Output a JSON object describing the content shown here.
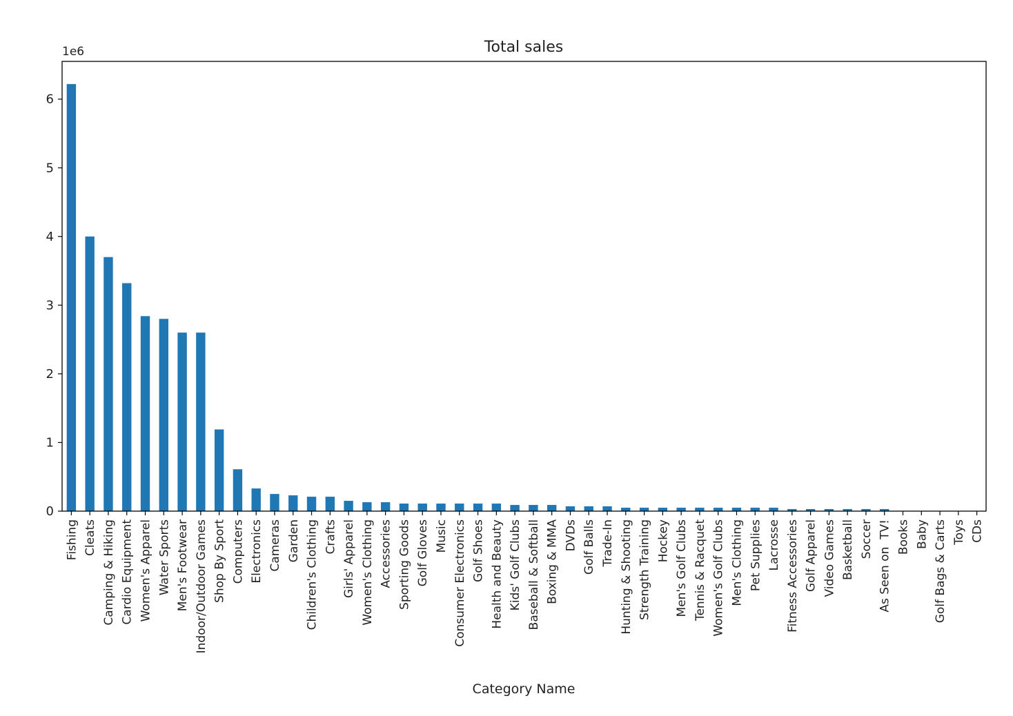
{
  "chart_data": {
    "type": "bar",
    "title": "Total sales",
    "xlabel": "Category Name",
    "ylabel": "",
    "y_offset_label": "1e6",
    "y_scale": 1000000,
    "ylim": [
      0,
      6550000
    ],
    "yticks": [
      0,
      1,
      2,
      3,
      4,
      5,
      6
    ],
    "grid": false,
    "legend": "none",
    "bar_color": "#1f77b4",
    "categories": [
      "Fishing",
      "Cleats",
      "Camping & Hiking",
      "Cardio Equipment",
      "Women's Apparel",
      "Water Sports",
      "Men's Footwear",
      "Indoor/Outdoor Games",
      "Shop By Sport",
      "Computers",
      "Electronics",
      "Cameras",
      "Garden",
      "Children's Clothing",
      "Crafts",
      "Girls' Apparel",
      "Women's Clothing",
      "Accessories",
      "Sporting Goods",
      "Golf Gloves",
      "Music",
      "Consumer Electronics",
      "Golf Shoes",
      "Health and Beauty",
      "Kids' Golf Clubs",
      "Baseball & Softball",
      "Boxing & MMA",
      "DVDs",
      "Golf Balls",
      "Trade-In",
      "Hunting & Shooting",
      "Strength Training",
      "Hockey",
      "Men's Golf Clubs",
      "Tennis & Racquet",
      "Women's Golf Clubs",
      "Men's Clothing",
      "Pet Supplies",
      "Lacrosse",
      "Fitness Accessories",
      "Golf Apparel",
      "Video Games",
      "Basketball",
      "Soccer",
      "As Seen on  TV!",
      "Books",
      "Baby",
      "Golf Bags & Carts",
      "Toys",
      "CDs"
    ],
    "values": [
      6220000,
      4000000,
      3700000,
      3320000,
      2840000,
      2800000,
      2600000,
      2600000,
      1190000,
      610000,
      330000,
      250000,
      230000,
      210000,
      210000,
      150000,
      130000,
      130000,
      110000,
      110000,
      110000,
      110000,
      110000,
      110000,
      90000,
      90000,
      90000,
      70000,
      70000,
      70000,
      50000,
      50000,
      50000,
      50000,
      50000,
      50000,
      50000,
      50000,
      50000,
      30000,
      30000,
      30000,
      30000,
      30000,
      30000,
      3000,
      3000,
      2000,
      2000,
      2000
    ]
  }
}
